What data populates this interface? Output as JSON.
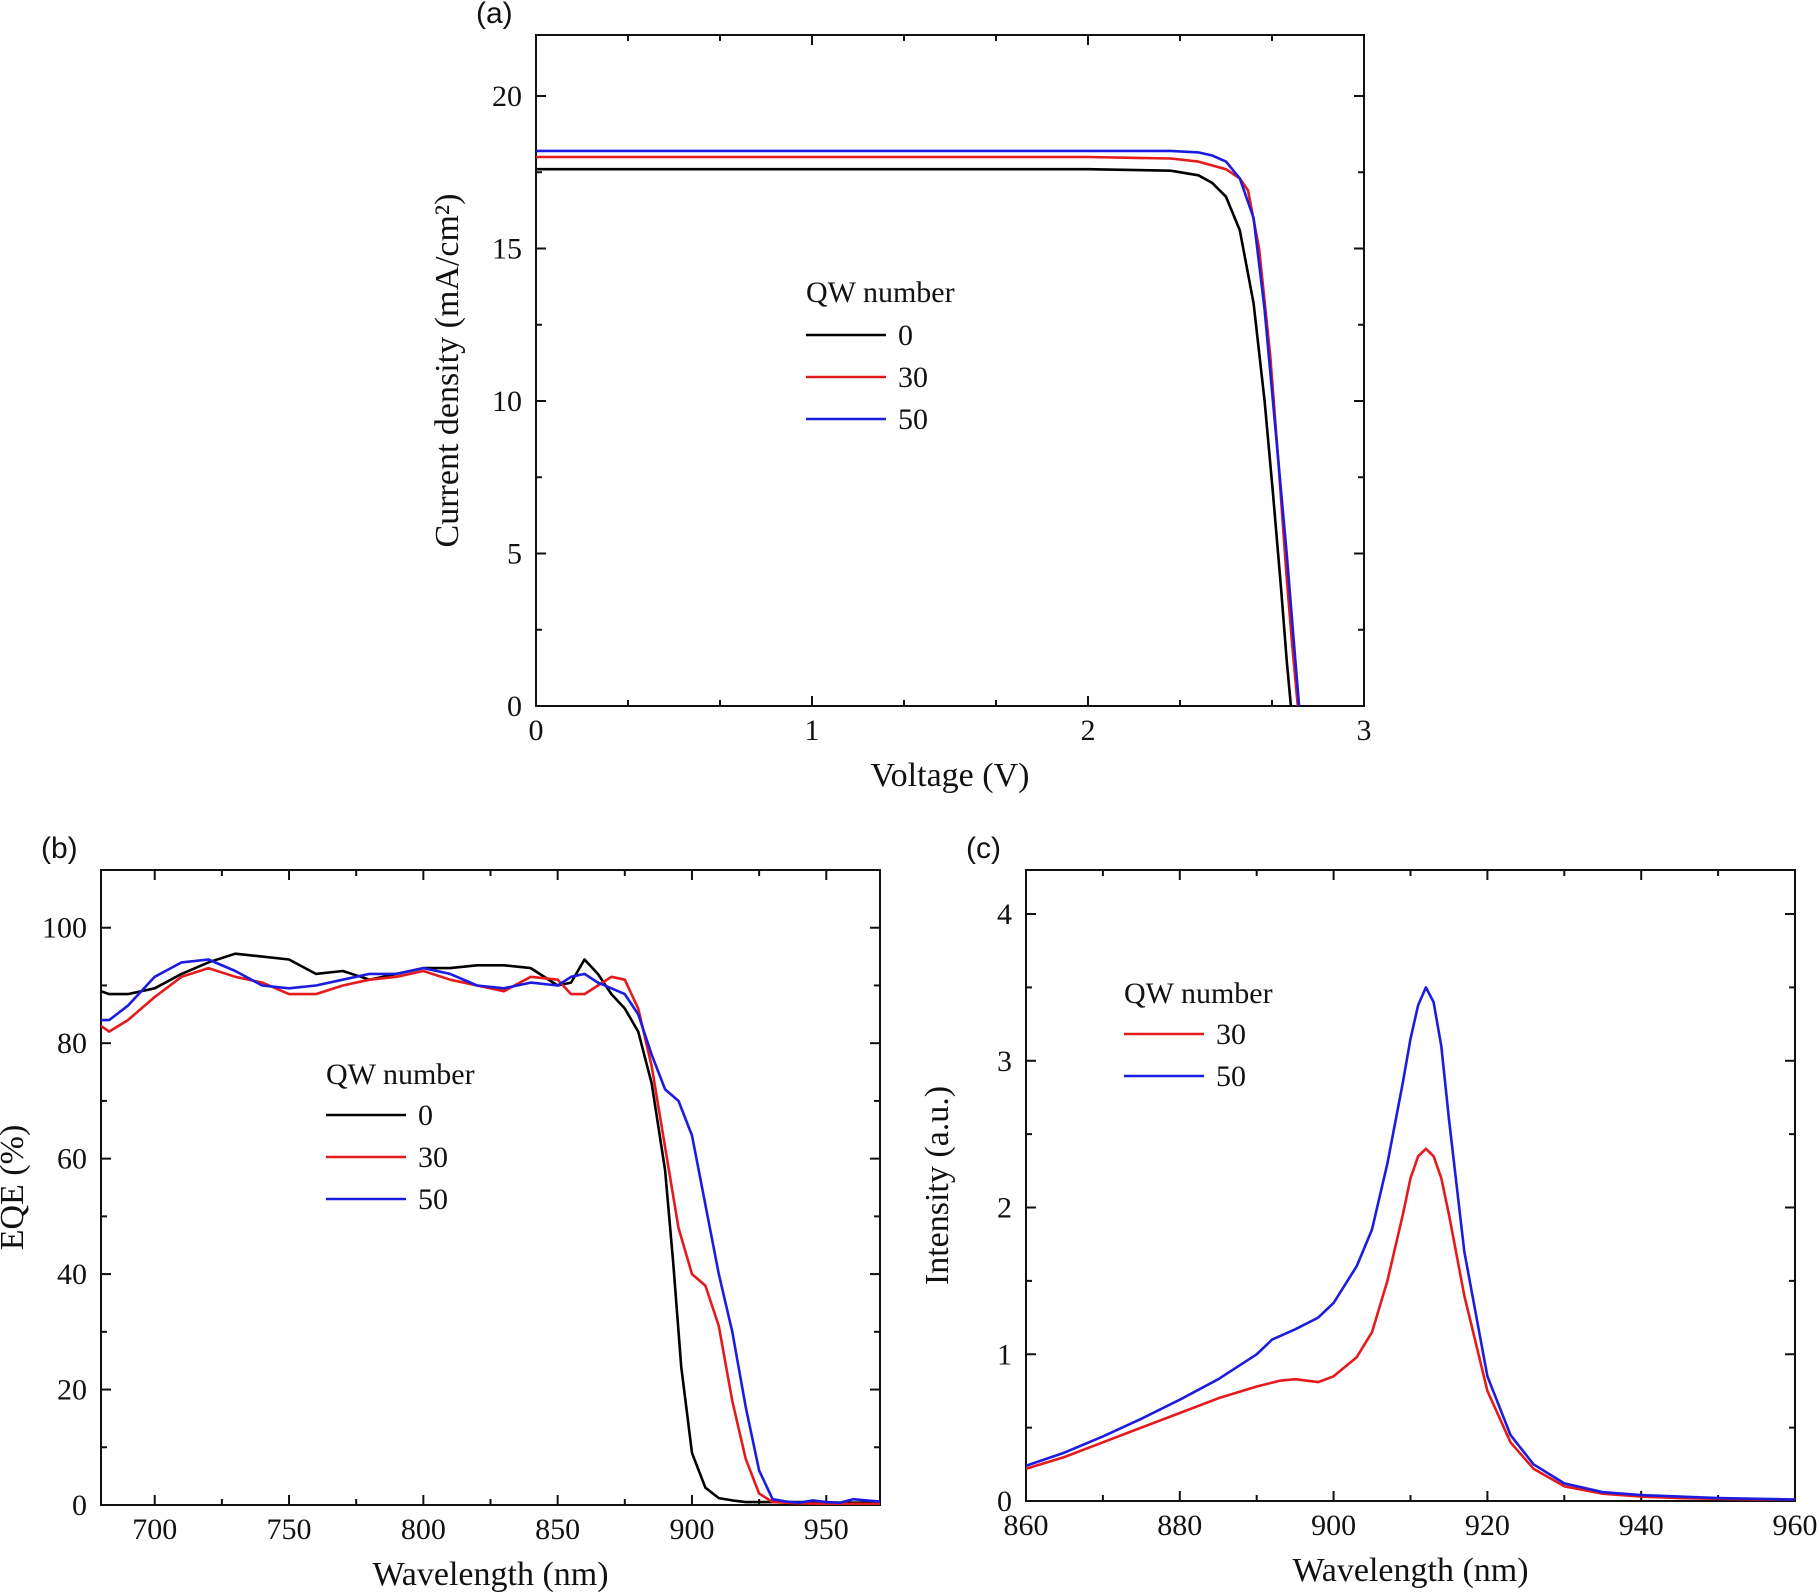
{
  "chart_data": [
    {
      "panel": "(a)",
      "type": "line",
      "title": "",
      "xlabel": "Voltage (V)",
      "ylabel": "Current density (mA/cm²)",
      "xlim": [
        0,
        3
      ],
      "ylim": [
        0,
        22
      ],
      "xticks": [
        0,
        1,
        2,
        3
      ],
      "yticks": [
        0,
        5,
        10,
        15,
        20
      ],
      "grid": false,
      "legend": {
        "title": "QW number",
        "placement": "center-right"
      },
      "series": [
        {
          "name": "0",
          "color": "#000000",
          "x": [
            0,
            1.0,
            2.0,
            2.3,
            2.4,
            2.45,
            2.5,
            2.55,
            2.6,
            2.64,
            2.67,
            2.7,
            2.72,
            2.735
          ],
          "y": [
            17.6,
            17.6,
            17.6,
            17.55,
            17.4,
            17.15,
            16.7,
            15.6,
            13.2,
            10.0,
            7.0,
            3.8,
            1.5,
            0
          ]
        },
        {
          "name": "30",
          "color": "#e41a1c",
          "x": [
            0,
            1.0,
            2.0,
            2.3,
            2.4,
            2.5,
            2.55,
            2.58,
            2.62,
            2.66,
            2.69,
            2.72,
            2.74,
            2.76
          ],
          "y": [
            18.0,
            18.0,
            18.0,
            17.95,
            17.85,
            17.6,
            17.3,
            16.9,
            15.0,
            11.5,
            8.0,
            4.2,
            2.0,
            0
          ]
        },
        {
          "name": "50",
          "color": "#1c1ce0",
          "x": [
            0,
            1.0,
            2.0,
            2.3,
            2.4,
            2.45,
            2.5,
            2.55,
            2.6,
            2.64,
            2.68,
            2.72,
            2.745,
            2.765
          ],
          "y": [
            18.2,
            18.2,
            18.2,
            18.2,
            18.15,
            18.05,
            17.85,
            17.3,
            16.0,
            13.0,
            9.0,
            5.0,
            2.2,
            0
          ]
        }
      ]
    },
    {
      "panel": "(b)",
      "type": "line",
      "title": "",
      "xlabel": "Wavelength (nm)",
      "ylabel": "EQE (%)",
      "xlim": [
        680,
        970
      ],
      "ylim": [
        0,
        110
      ],
      "xticks": [
        700,
        750,
        800,
        850,
        900,
        950
      ],
      "yticks": [
        0,
        20,
        40,
        60,
        80,
        100
      ],
      "grid": false,
      "legend": {
        "title": "QW number",
        "placement": "center"
      },
      "series": [
        {
          "name": "0",
          "color": "#000000",
          "x": [
            680,
            683,
            690,
            700,
            710,
            720,
            730,
            740,
            750,
            760,
            770,
            780,
            790,
            800,
            810,
            820,
            830,
            840,
            850,
            855,
            860,
            865,
            870,
            875,
            880,
            885,
            890,
            893,
            896,
            900,
            905,
            910,
            915,
            920,
            930,
            940,
            950,
            960,
            970
          ],
          "y": [
            89,
            88.5,
            88.5,
            89.5,
            92,
            94,
            95.5,
            95,
            94.5,
            92,
            92.5,
            91,
            92,
            93,
            93,
            93.5,
            93.5,
            93,
            90,
            90.5,
            94.5,
            92,
            88.5,
            86,
            82,
            73,
            58,
            42,
            24,
            9,
            3,
            1.2,
            0.8,
            0.5,
            0.5,
            0.5,
            0.4,
            0.4,
            0.4
          ]
        },
        {
          "name": "30",
          "color": "#e41a1c",
          "x": [
            680,
            683,
            690,
            700,
            710,
            720,
            730,
            740,
            750,
            760,
            770,
            780,
            790,
            800,
            810,
            820,
            830,
            840,
            850,
            855,
            860,
            865,
            870,
            875,
            880,
            885,
            890,
            895,
            900,
            905,
            910,
            915,
            920,
            925,
            930,
            940,
            950,
            960,
            970
          ],
          "y": [
            83,
            82,
            84,
            88,
            91.5,
            93,
            91.5,
            90.5,
            88.5,
            88.5,
            90,
            91,
            91.5,
            92.5,
            91,
            90,
            89,
            91.5,
            91,
            88.5,
            88.5,
            90,
            91.5,
            91,
            86,
            76,
            62,
            48,
            40,
            38,
            31,
            18,
            8,
            2,
            0.5,
            0.3,
            0.2,
            0.2,
            0.2
          ]
        },
        {
          "name": "50",
          "color": "#1c1ce0",
          "x": [
            680,
            683,
            690,
            700,
            710,
            720,
            730,
            740,
            750,
            760,
            770,
            780,
            790,
            800,
            810,
            820,
            830,
            840,
            850,
            855,
            860,
            865,
            870,
            875,
            880,
            885,
            890,
            895,
            900,
            905,
            910,
            915,
            920,
            925,
            930,
            935,
            940,
            945,
            950,
            955,
            960,
            965,
            970
          ],
          "y": [
            84,
            84,
            86.5,
            91.5,
            94,
            94.5,
            92.5,
            90,
            89.5,
            90,
            91,
            92,
            92,
            93,
            92,
            90,
            89.5,
            90.5,
            90,
            91.5,
            92,
            90.5,
            89.5,
            88.5,
            85,
            78,
            72,
            70,
            64,
            52,
            40,
            30,
            17,
            6,
            1,
            0.6,
            0.4,
            0.8,
            0.5,
            0.4,
            1.0,
            0.8,
            0.6
          ]
        }
      ]
    },
    {
      "panel": "(c)",
      "type": "line",
      "title": "",
      "xlabel": "Wavelength (nm)",
      "ylabel": "Intensity (a.u.)",
      "xlim": [
        860,
        960
      ],
      "ylim": [
        0,
        4.3
      ],
      "xticks": [
        860,
        880,
        900,
        920,
        940,
        960
      ],
      "yticks": [
        0,
        1,
        2,
        3,
        4
      ],
      "grid": false,
      "legend": {
        "title": "QW number",
        "placement": "upper-left"
      },
      "series": [
        {
          "name": "30",
          "color": "#e41a1c",
          "x": [
            860,
            865,
            870,
            875,
            880,
            885,
            890,
            893,
            895,
            898,
            900,
            903,
            905,
            907,
            909,
            910,
            911,
            912,
            913,
            914,
            915,
            917,
            920,
            923,
            926,
            930,
            935,
            940,
            945,
            950,
            955,
            960
          ],
          "y": [
            0.22,
            0.3,
            0.4,
            0.5,
            0.6,
            0.7,
            0.78,
            0.82,
            0.83,
            0.81,
            0.85,
            0.98,
            1.15,
            1.5,
            1.95,
            2.2,
            2.35,
            2.4,
            2.35,
            2.2,
            1.95,
            1.4,
            0.75,
            0.4,
            0.22,
            0.1,
            0.05,
            0.03,
            0.02,
            0.015,
            0.01,
            0.01
          ]
        },
        {
          "name": "50",
          "color": "#1c1ce0",
          "x": [
            860,
            865,
            870,
            875,
            880,
            885,
            890,
            892,
            895,
            898,
            900,
            903,
            905,
            907,
            909,
            910,
            911,
            912,
            913,
            914,
            915,
            917,
            920,
            923,
            926,
            930,
            935,
            940,
            945,
            950,
            955,
            960
          ],
          "y": [
            0.24,
            0.33,
            0.44,
            0.56,
            0.69,
            0.83,
            1.0,
            1.1,
            1.17,
            1.25,
            1.35,
            1.6,
            1.85,
            2.3,
            2.85,
            3.15,
            3.38,
            3.5,
            3.4,
            3.1,
            2.6,
            1.7,
            0.85,
            0.45,
            0.25,
            0.12,
            0.06,
            0.04,
            0.03,
            0.02,
            0.015,
            0.01
          ]
        }
      ]
    }
  ]
}
